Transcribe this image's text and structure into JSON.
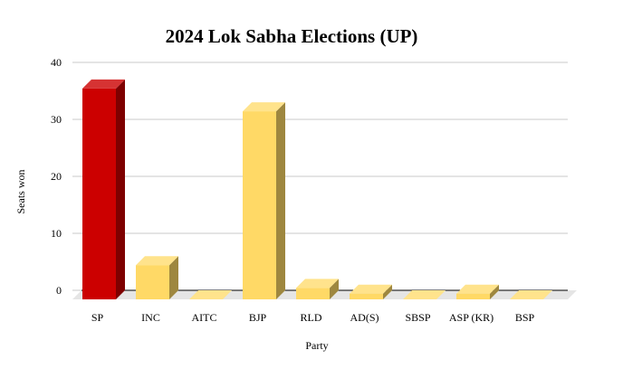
{
  "chart_data": {
    "type": "bar",
    "title": "2024 Lok Sabha Elections (UP)",
    "xlabel": "Party",
    "ylabel": "Seats won",
    "categories": [
      "SP",
      "INC",
      "AITC",
      "BJP",
      "RLD",
      "AD(S)",
      "SBSP",
      "ASP (KR)",
      "BSP"
    ],
    "values": [
      37,
      6,
      0,
      33,
      2,
      1,
      0,
      1,
      0
    ],
    "ylim": [
      0,
      40
    ],
    "yticks": [
      0,
      10,
      20,
      30,
      40
    ],
    "grid": true,
    "legend": "none",
    "style": "3d-bars",
    "colors": {
      "highlight": "#CC0000",
      "default": "#FFD966",
      "grid": "#C8C8C8",
      "floor": "#E5E5E5"
    },
    "highlight_category": "SP"
  }
}
